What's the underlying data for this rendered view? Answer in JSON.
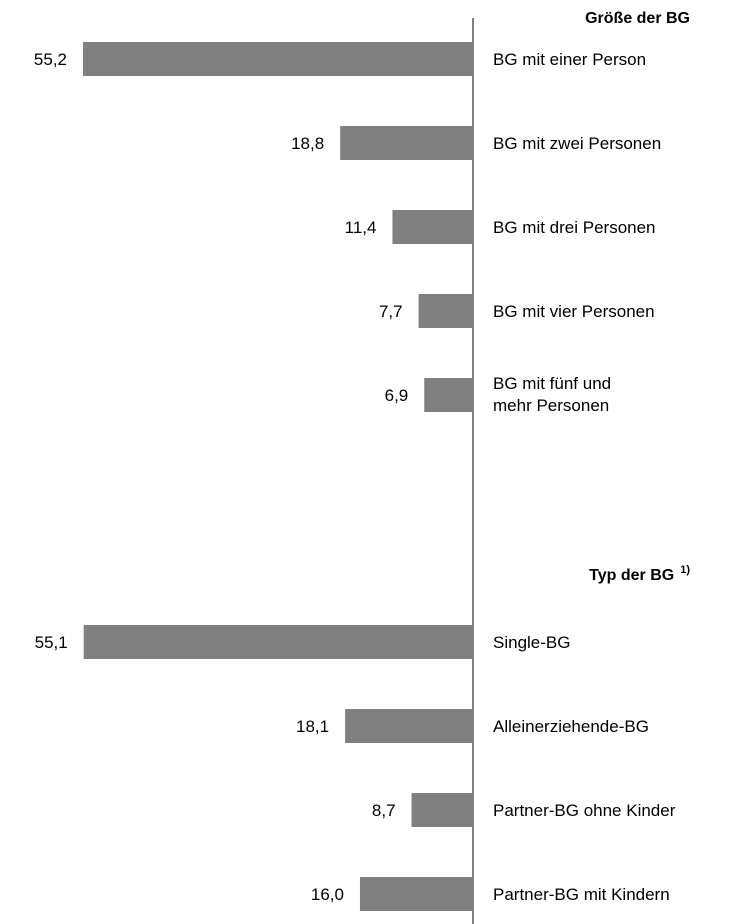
{
  "chart_data": {
    "type": "bar",
    "orientation": "horizontal-leftward",
    "bar_color": "#808080",
    "axis_color": "#808080",
    "xlim": [
      0,
      60
    ],
    "grid": false,
    "groups": [
      {
        "title": "Größe der BG",
        "title_superscript": "",
        "categories": [
          [
            "BG mit einer Person"
          ],
          [
            "BG mit zwei Personen"
          ],
          [
            "BG mit drei Personen"
          ],
          [
            "BG mit vier Personen"
          ],
          [
            "BG mit fünf und",
            "mehr Personen"
          ]
        ],
        "values": [
          55.2,
          18.8,
          11.4,
          7.7,
          6.9
        ],
        "value_labels": [
          "55,2",
          "18,8",
          "11,4",
          "7,7",
          "6,9"
        ]
      },
      {
        "title": "Typ der BG",
        "title_superscript": "1)",
        "categories": [
          [
            "Single-BG"
          ],
          [
            "Alleinerziehende-BG"
          ],
          [
            "Partner-BG ohne Kinder"
          ],
          [
            "Partner-BG mit Kindern"
          ]
        ],
        "values": [
          55.1,
          18.1,
          8.7,
          16.0
        ],
        "value_labels": [
          "55,1",
          "18,1",
          "8,7",
          "16,0"
        ]
      }
    ]
  }
}
